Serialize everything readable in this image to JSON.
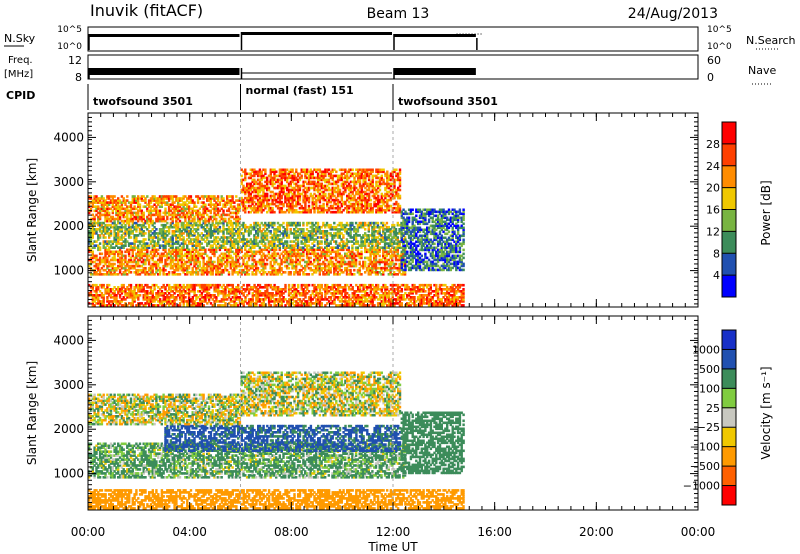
{
  "header": {
    "station": "Inuvik (fitACF)",
    "beam": "Beam 13",
    "date": "24/Aug/2013"
  },
  "left_labels": {
    "nsky": "N.Sky",
    "freq_line1": "Freq.",
    "freq_line2": "[MHz]",
    "cpid": "CPID"
  },
  "right_labels": {
    "nsearch": "N.Search",
    "nave": "Nave"
  },
  "mini_axes": {
    "noise_left_top": "10^5",
    "noise_left_bottom": "10^0",
    "noise_right_top": "10^5",
    "noise_right_bottom": "10^0",
    "freq_left_top": "12",
    "freq_left_bottom": "8",
    "freq_right_top": "60",
    "freq_right_bottom": "0"
  },
  "cpid_segments": [
    {
      "label": "twofsound 3501",
      "start_h": 0,
      "end_h": 6
    },
    {
      "label": "normal (fast) 151",
      "start_h": 6,
      "end_h": 12
    },
    {
      "label": "twofsound 3501",
      "start_h": 12,
      "end_h": 15.3
    }
  ],
  "colors": {
    "power_scale": [
      "#0000ff",
      "#2050b0",
      "#3c8c5a",
      "#78b441",
      "#f0c800",
      "#ff8c00",
      "#ff4000",
      "#ff0000"
    ],
    "velocity_scale": [
      "#ff0000",
      "#ff6000",
      "#ff9a00",
      "#f0c800",
      "#c8c8c0",
      "#80cc40",
      "#3c8c5a",
      "#2050b0",
      "#1830c8"
    ]
  },
  "chart_data": [
    {
      "type": "heatmap",
      "name": "power",
      "ylabel": "Slant Range [km]",
      "ylim": [
        180,
        4550
      ],
      "yticks": [
        "1000",
        "2000",
        "3000",
        "4000"
      ],
      "colorbar_label": "Power [dB]",
      "colorbar_ticks": [
        "4",
        "8",
        "12",
        "16",
        "20",
        "24",
        "28"
      ],
      "bands": [
        {
          "x0": 0.0,
          "x1": 14.8,
          "y0": 200,
          "y1": 700,
          "value": 24
        },
        {
          "x0": 0.0,
          "x1": 12.5,
          "y0": 900,
          "y1": 1500,
          "value": 22
        },
        {
          "x0": 0.0,
          "x1": 12.5,
          "y0": 1500,
          "y1": 2100,
          "value": 14
        },
        {
          "x0": 0.0,
          "x1": 6.0,
          "y0": 2100,
          "y1": 2700,
          "value": 22
        },
        {
          "x0": 6.0,
          "x1": 12.3,
          "y0": 2300,
          "y1": 3300,
          "value": 24
        },
        {
          "x0": 12.3,
          "x1": 14.8,
          "y0": 1000,
          "y1": 2400,
          "value": 8
        }
      ]
    },
    {
      "type": "heatmap",
      "name": "velocity",
      "ylabel": "Slant Range [km]",
      "ylim": [
        180,
        4550
      ],
      "yticks": [
        "1000",
        "2000",
        "3000",
        "4000"
      ],
      "colorbar_label": "Velocity [m s⁻¹]",
      "colorbar_ticks": [
        "1000",
        "500",
        "100",
        "25",
        "−25",
        "−100",
        "−500",
        "−1000"
      ],
      "bands": [
        {
          "x0": 0.0,
          "x1": 14.8,
          "y0": 200,
          "y1": 650,
          "value": -300
        },
        {
          "x0": 0.0,
          "x1": 12.5,
          "y0": 900,
          "y1": 1700,
          "value": 150
        },
        {
          "x0": 3.0,
          "x1": 12.3,
          "y0": 1500,
          "y1": 2100,
          "value": 600
        },
        {
          "x0": 0.0,
          "x1": 6.0,
          "y0": 2100,
          "y1": 2800,
          "value": 0
        },
        {
          "x0": 6.0,
          "x1": 12.3,
          "y0": 2300,
          "y1": 3300,
          "value": 0
        },
        {
          "x0": 12.3,
          "x1": 14.8,
          "y0": 1000,
          "y1": 2400,
          "value": 300
        }
      ]
    }
  ],
  "xaxis": {
    "ticks": [
      "00:00",
      "04:00",
      "08:00",
      "12:00",
      "16:00",
      "20:00",
      "00:00"
    ],
    "label": "Time UT"
  }
}
